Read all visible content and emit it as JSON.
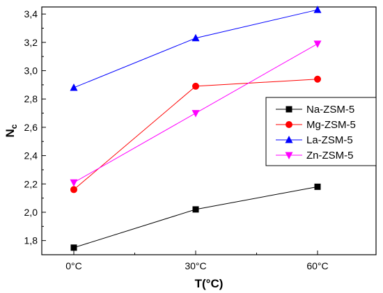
{
  "chart_data": {
    "type": "line",
    "title": "",
    "xlabel": "T(°C)",
    "ylabel": {
      "main": "N",
      "sub": "c"
    },
    "categories": [
      "0°C",
      "30°C",
      "60°C"
    ],
    "ylim": [
      1.7,
      3.45
    ],
    "yticks": [
      "1,8",
      "2,0",
      "2,2",
      "2,4",
      "2,6",
      "2,8",
      "3,0",
      "3,2",
      "3,4"
    ],
    "ytick_values": [
      1.8,
      2.0,
      2.2,
      2.4,
      2.6,
      2.8,
      3.0,
      3.2,
      3.4
    ],
    "grid": false,
    "legend_position": "right",
    "series": [
      {
        "name": "Na-ZSM-5",
        "values": [
          1.75,
          2.02,
          2.18
        ],
        "color": "#000000",
        "marker": "square"
      },
      {
        "name": "Mg-ZSM-5",
        "values": [
          2.16,
          2.89,
          2.94
        ],
        "color": "#ff0000",
        "marker": "circle"
      },
      {
        "name": "La-ZSM-5",
        "values": [
          2.88,
          3.23,
          3.43
        ],
        "color": "#0000ff",
        "marker": "triangle-up"
      },
      {
        "name": "Zn-ZSM-5",
        "values": [
          2.21,
          2.7,
          3.19
        ],
        "color": "#ff00ff",
        "marker": "triangle-down"
      }
    ]
  }
}
